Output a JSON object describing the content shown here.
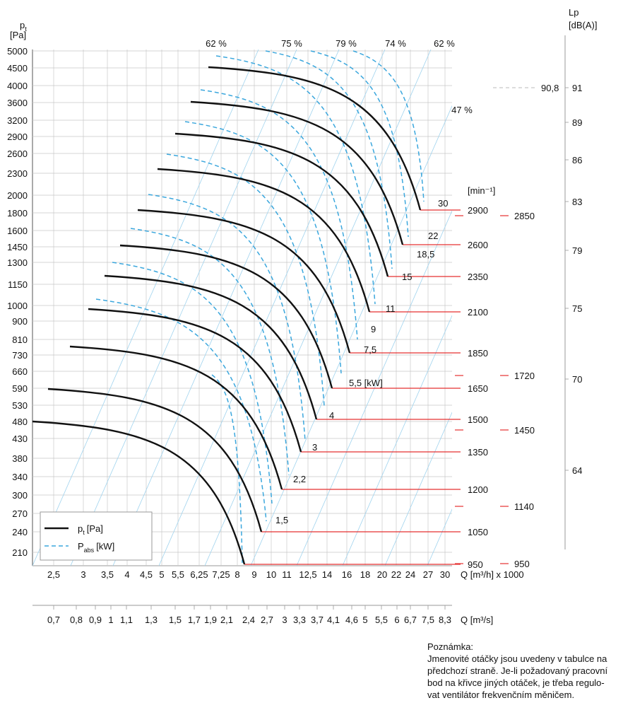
{
  "chart_data": {
    "type": "line",
    "y_axis": {
      "label_main": "p",
      "label_sub": "t",
      "unit": "[Pa]",
      "ticks": [
        "5000",
        "4500",
        "4000",
        "3600",
        "3200",
        "2900",
        "2600",
        "2300",
        "2000",
        "1800",
        "1600",
        "1450",
        "1300",
        "1150",
        "1000",
        "900",
        "810",
        "730",
        "660",
        "590",
        "530",
        "480",
        "430",
        "380",
        "340",
        "300",
        "270",
        "240",
        "210"
      ]
    },
    "x_axis_q_m3h": {
      "label": "Q [m³/h] x 1000",
      "ticks": [
        "2,5",
        "3",
        "3,5",
        "4",
        "4,5",
        "5",
        "5,5",
        "6,25",
        "7,25",
        "8",
        "9",
        "10",
        "11",
        "12,5",
        "14",
        "16",
        "18",
        "20",
        "22",
        "24",
        "27",
        "30"
      ]
    },
    "x_axis_q_m3s": {
      "label": "Q [m³/s]",
      "ticks": [
        "0,7",
        "0,8",
        "0,9",
        "1",
        "1,1",
        "1,3",
        "1,5",
        "1,7",
        "1,9",
        "2,1",
        "2,4",
        "2,7",
        "3",
        "3,3",
        "3,7",
        "4,1",
        "4,6",
        "5",
        "5,5",
        "6",
        "6,7",
        "7,5",
        "8,3"
      ]
    },
    "efficiency_labels": [
      "62 %",
      "75 %",
      "79 %",
      "74 %",
      "62 %",
      "47 %"
    ],
    "speed_header": "[min⁻¹]",
    "speeds": [
      "2900",
      "2600",
      "2350",
      "2100",
      "1850",
      "1650",
      "1500",
      "1350",
      "1200",
      "1050",
      "950"
    ],
    "motor_power_labels": [
      "30",
      "22",
      "18,5",
      "15",
      "11",
      "9",
      "7,5",
      "5,5 [kW]",
      "4",
      "3",
      "2,2",
      "1,5"
    ],
    "alt_speeds": [
      "2850",
      "1720",
      "1450",
      "1140",
      "950"
    ],
    "noise_axis": {
      "title_line1": "Lp",
      "title_line2": "[dB(A)]",
      "ticks": [
        "91",
        "89",
        "86",
        "83",
        "79",
        "75",
        "70",
        "64"
      ],
      "max_label": "90,8"
    },
    "series": [
      {
        "name": "p",
        "name_sub": "t",
        "unit": "[Pa]",
        "style": "solid"
      },
      {
        "name": "P",
        "name_sub": "abs",
        "unit": "[kW]",
        "style": "dashed"
      }
    ],
    "colors": {
      "pressure_curve": "#111111",
      "power_curve": "#3ba7dd",
      "efficiency_ray": "#9fd3ee",
      "speed_line": "#e53030",
      "grid": "#c8c8c8"
    }
  },
  "note": {
    "title": "Poznámka:",
    "lines": [
      "Jmenovité otáčky jsou uvedeny v tabulce na",
      "předchozí straně. Je-li požadovaný pracovní",
      "bod na křivce jiných otáček, je třeba regulo-",
      "vat ventilátor frekvenčním měničem."
    ]
  }
}
